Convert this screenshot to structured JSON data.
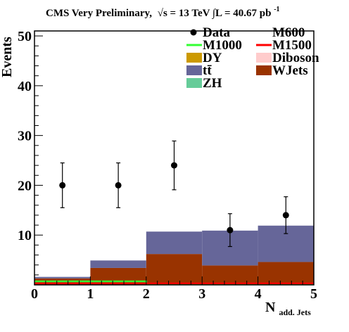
{
  "chart_data": {
    "type": "bar",
    "title_parts": {
      "prefix": "CMS Very Preliminary,",
      "sqrt": "√s",
      "energy": " = 13 TeV ",
      "lumi": "∫L = 40.67 pb",
      "lumi_exp": "-1"
    },
    "xlabel": "N",
    "xlabel_sub": "add. Jets",
    "ylabel": "Events",
    "xlim": [
      0,
      5
    ],
    "ylim": [
      0,
      51
    ],
    "x_ticks": [
      "0",
      "1",
      "2",
      "3",
      "4",
      "5"
    ],
    "y_ticks": [
      "10",
      "20",
      "30",
      "40",
      "50"
    ],
    "bin_edges": [
      0,
      1,
      2,
      3,
      4,
      5
    ],
    "stack": [
      {
        "name": "WJets",
        "color": "#993300",
        "values": [
          1.3,
          3.4,
          6.2,
          3.9,
          4.6
        ]
      },
      {
        "name": "tt̄",
        "color": "#666699",
        "values": [
          0.3,
          1.5,
          4.5,
          7.0,
          7.3
        ]
      }
    ],
    "signal_lines": [
      {
        "name": "M1000",
        "color": "#33ff33",
        "values": [
          0.7,
          0.7,
          0.2,
          0.2,
          0.2
        ]
      },
      {
        "name": "M1500",
        "color": "#ff0000",
        "values": [
          0.3,
          0.3,
          0.3,
          0.3,
          0.3
        ]
      }
    ],
    "data_points": {
      "name": "Data",
      "x": [
        0.5,
        1.5,
        2.5,
        3.5,
        4.5
      ],
      "y": [
        20,
        20,
        24,
        11,
        14
      ],
      "err": [
        4.5,
        4.5,
        4.9,
        3.3,
        3.7
      ]
    },
    "legend": [
      {
        "label": "Data",
        "type": "marker",
        "color": "#000000"
      },
      {
        "label": "M600",
        "type": "none",
        "color": ""
      },
      {
        "label": "M1000",
        "type": "line",
        "color": "#33ff33"
      },
      {
        "label": "M1500",
        "type": "line",
        "color": "#ff0000"
      },
      {
        "label": "DY",
        "type": "box",
        "color": "#cc9900"
      },
      {
        "label": "Diboson",
        "type": "box",
        "color": "#ffcccc"
      },
      {
        "label": "tt̄",
        "type": "box",
        "color": "#666699"
      },
      {
        "label": "WJets",
        "type": "box",
        "color": "#993300"
      },
      {
        "label": "ZH",
        "type": "box",
        "color": "#66cc99"
      }
    ],
    "legend_position": "top-right",
    "grid": false
  }
}
